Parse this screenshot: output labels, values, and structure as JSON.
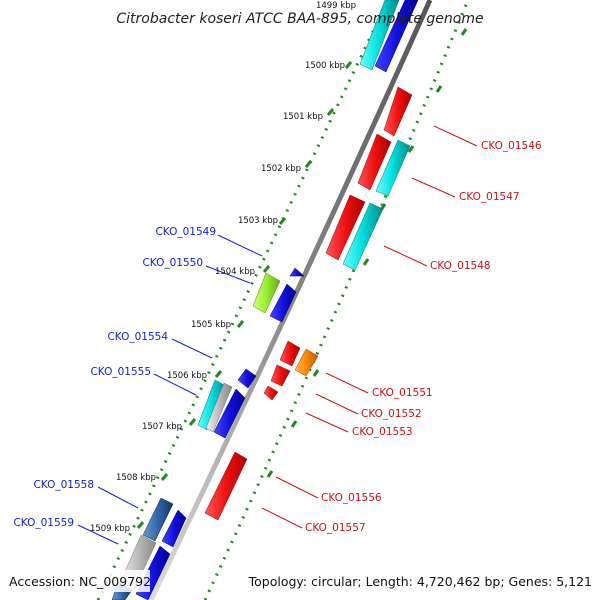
{
  "title": "Citrobacter koseri ATCC BAA-895, complete genome",
  "top_partial_tick": "1499 kbp",
  "ticks": [
    {
      "label": "1500 kbp"
    },
    {
      "label": "1501 kbp"
    },
    {
      "label": "1502 kbp"
    },
    {
      "label": "1503 kbp"
    },
    {
      "label": "1504 kbp"
    },
    {
      "label": "1505 kbp"
    },
    {
      "label": "1506 kbp"
    },
    {
      "label": "1507 kbp"
    },
    {
      "label": "1508 kbp"
    },
    {
      "label": "1509 kbp"
    }
  ],
  "labels_left": [
    "CKO_01549",
    "CKO_01550",
    "CKO_01554",
    "CKO_01555",
    "CKO_01558",
    "CKO_01559"
  ],
  "labels_right": [
    "CKO_01546",
    "CKO_01547",
    "CKO_01548",
    "CKO_01551",
    "CKO_01552",
    "CKO_01553",
    "CKO_01556",
    "CKO_01557"
  ],
  "colors": {
    "forward_gene": "#ee1111",
    "reverse_gene": "#1111dd",
    "cyan_gene": "#00cccc",
    "green_gene": "#99ee33",
    "orange_gene": "#ff8800",
    "steel_gene": "#3366aa",
    "gray_gene": "#aaaaaa",
    "backbone": "#777777",
    "tick": "#228822",
    "label_left": "#1122cc",
    "label_right": "#cc1111"
  },
  "footer": {
    "accession": "Accession: NC_009792",
    "topology": "Topology: circular; Length: 4,720,462 bp; Genes: 5,121"
  }
}
